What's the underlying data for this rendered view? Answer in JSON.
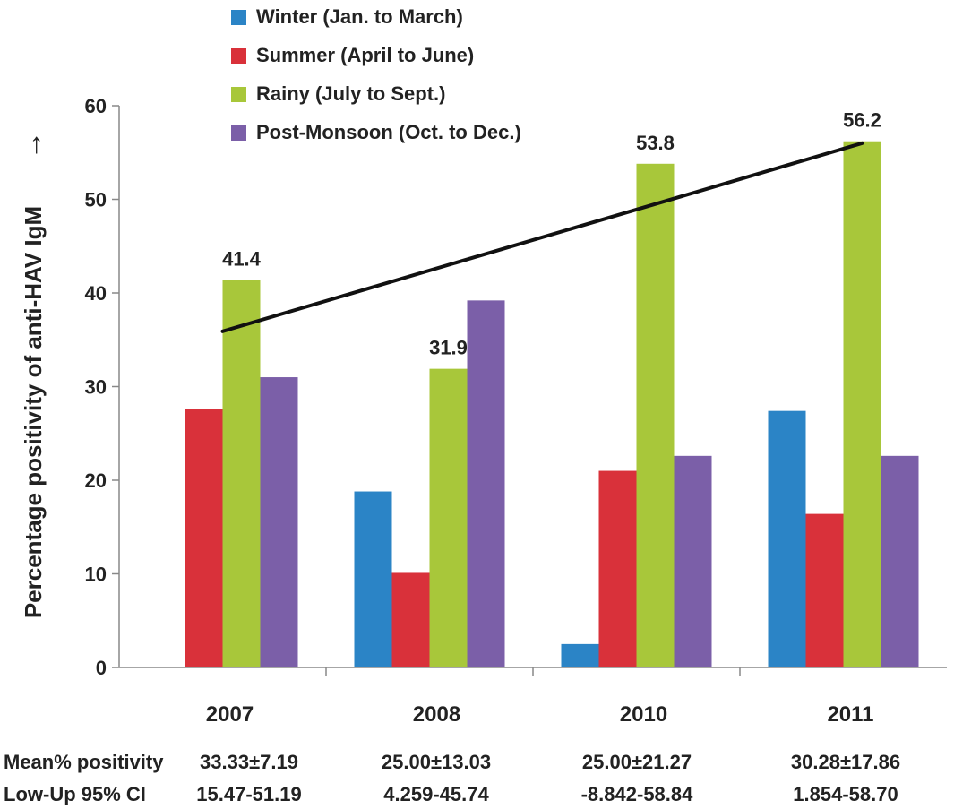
{
  "chart_data": {
    "type": "bar",
    "ylabel": "Percentage positivity of anti-HAV IgM",
    "ylabel_arrow": "→",
    "ylim": [
      0,
      60
    ],
    "yticks": [
      "0",
      "10",
      "20",
      "30",
      "40",
      "50",
      "60"
    ],
    "categories": [
      "2007",
      "2008",
      "2010",
      "2011"
    ],
    "series": [
      {
        "name": "Winter (Jan. to March)",
        "color": "#2b84c6",
        "values": [
          0,
          18.8,
          2.5,
          27.4
        ]
      },
      {
        "name": "Summer (April to June)",
        "color": "#d9313a",
        "values": [
          27.6,
          10.1,
          21.0,
          16.4
        ]
      },
      {
        "name": "Rainy (July to Sept.)",
        "color": "#a8c73a",
        "values": [
          41.4,
          31.9,
          53.8,
          56.2
        ]
      },
      {
        "name": "Post-Monsoon (Oct. to Dec.)",
        "color": "#7b5fa8",
        "values": [
          31.0,
          39.2,
          22.6,
          22.6
        ]
      }
    ],
    "data_labels": [
      {
        "category_index": 0,
        "series_index": 2,
        "text": "41.4"
      },
      {
        "category_index": 1,
        "series_index": 2,
        "text": "31.9"
      },
      {
        "category_index": 2,
        "series_index": 2,
        "text": "53.8"
      },
      {
        "category_index": 3,
        "series_index": 2,
        "text": "56.2"
      }
    ],
    "trend_line": {
      "from_category": "2007",
      "from_value": 35.9,
      "to_category": "2011",
      "to_value": 56.0,
      "color": "#111111"
    },
    "legend_position": "top",
    "grid": false,
    "stats_rows": [
      {
        "label": "Mean% positivity",
        "values": [
          "33.33±7.19",
          "25.00±13.03",
          "25.00±21.27",
          "30.28±17.86"
        ]
      },
      {
        "label": "Low-Up 95% CI",
        "values": [
          "15.47-51.19",
          "4.259-45.74",
          "-8.842-58.84",
          "1.854-58.70"
        ]
      }
    ]
  }
}
